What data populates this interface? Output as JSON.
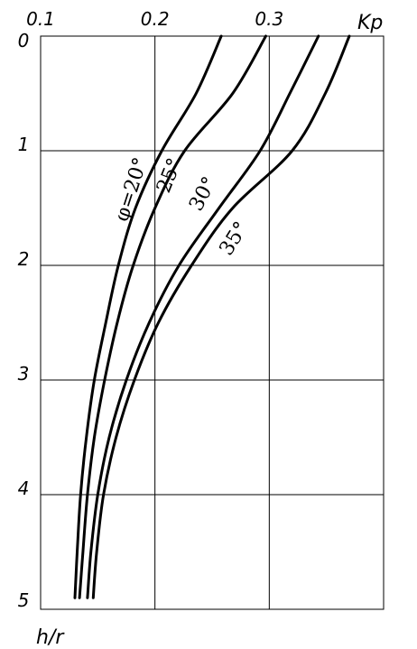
{
  "chart_data": {
    "type": "line",
    "xlabel": "Kp",
    "ylabel": "h/r",
    "x_axis_position": "top",
    "y_inverted": true,
    "xlim": [
      0.1,
      0.4
    ],
    "ylim": [
      0,
      5
    ],
    "x_ticks": [
      {
        "value": 0.1,
        "label": "0.1"
      },
      {
        "value": 0.2,
        "label": "0.2"
      },
      {
        "value": 0.3,
        "label": "0.3"
      }
    ],
    "y_ticks": [
      {
        "value": 0,
        "label": "0"
      },
      {
        "value": 1,
        "label": "1"
      },
      {
        "value": 2,
        "label": "2"
      },
      {
        "value": 3,
        "label": "3"
      },
      {
        "value": 4,
        "label": "4"
      },
      {
        "value": 5,
        "label": "5"
      }
    ],
    "grid": true,
    "series": [
      {
        "name": "φ=20°",
        "points": [
          [
            0.258,
            0
          ],
          [
            0.236,
            0.5
          ],
          [
            0.206,
            1
          ],
          [
            0.183,
            1.5
          ],
          [
            0.168,
            2
          ],
          [
            0.157,
            2.5
          ],
          [
            0.147,
            3
          ],
          [
            0.14,
            3.5
          ],
          [
            0.135,
            4
          ],
          [
            0.132,
            4.5
          ],
          [
            0.13,
            4.9
          ]
        ]
      },
      {
        "name": "25°",
        "points": [
          [
            0.297,
            0
          ],
          [
            0.268,
            0.5
          ],
          [
            0.226,
            1
          ],
          [
            0.2,
            1.5
          ],
          [
            0.181,
            2
          ],
          [
            0.167,
            2.5
          ],
          [
            0.156,
            3
          ],
          [
            0.147,
            3.5
          ],
          [
            0.141,
            4
          ],
          [
            0.137,
            4.5
          ],
          [
            0.134,
            4.9
          ]
        ]
      },
      {
        "name": "30°",
        "points": [
          [
            0.343,
            0
          ],
          [
            0.318,
            0.5
          ],
          [
            0.292,
            1
          ],
          [
            0.256,
            1.5
          ],
          [
            0.221,
            2
          ],
          [
            0.195,
            2.5
          ],
          [
            0.175,
            3
          ],
          [
            0.16,
            3.5
          ],
          [
            0.15,
            4
          ],
          [
            0.144,
            4.5
          ],
          [
            0.141,
            4.9
          ]
        ]
      },
      {
        "name": "35°",
        "points": [
          [
            0.37,
            0
          ],
          [
            0.349,
            0.5
          ],
          [
            0.32,
            1
          ],
          [
            0.268,
            1.5
          ],
          [
            0.232,
            2
          ],
          [
            0.203,
            2.5
          ],
          [
            0.182,
            3
          ],
          [
            0.166,
            3.5
          ],
          [
            0.155,
            4
          ],
          [
            0.149,
            4.5
          ],
          [
            0.146,
            4.9
          ]
        ]
      }
    ],
    "curve_labels": [
      "φ=20°",
      "25°",
      "30°",
      "35°"
    ]
  }
}
